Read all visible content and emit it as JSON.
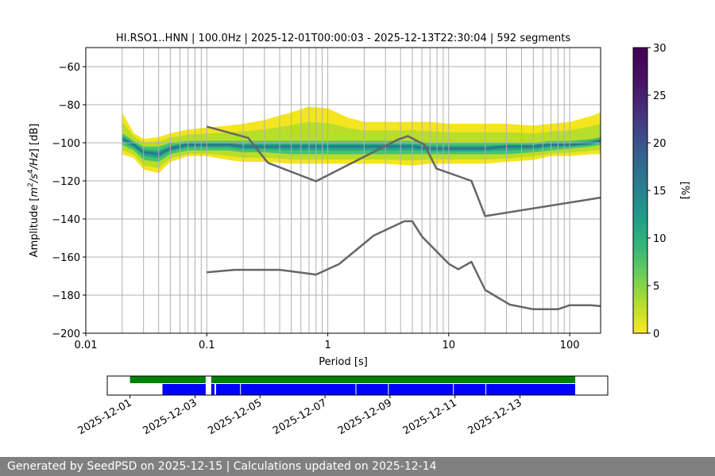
{
  "chart_data": [
    {
      "type": "heatmap",
      "title": "HI.RSO1..HNN | 100.0Hz | 2025-12-01T00:00:03 - 2025-12-13T22:30:04 | 592 segments",
      "xlabel": "Period [s]",
      "ylabel_parts": {
        "pre": "Amplitude [",
        "sym1": "m",
        "sup1": "2",
        "mid": "/",
        "sym2": "s",
        "sup2": "4",
        "slash": "/",
        "sym3": "Hz",
        "post": "] [dB]"
      },
      "x_scale": "log",
      "xlim": [
        0.01,
        180
      ],
      "ylim": [
        -200,
        -50
      ],
      "x_ticks": [
        0.01,
        0.1,
        1,
        10,
        100
      ],
      "x_tick_labels": [
        "0.01",
        "0.1",
        "1",
        "10",
        "100"
      ],
      "y_ticks": [
        -200,
        -180,
        -160,
        -140,
        -120,
        -100,
        -80,
        -60
      ],
      "y_tick_labels": [
        "−200",
        "−180",
        "−160",
        "−140",
        "−120",
        "−100",
        "−80",
        "−60"
      ],
      "period_gridlines": [
        0.02,
        0.03,
        0.04,
        0.05,
        0.06,
        0.07,
        0.08,
        0.09,
        0.1,
        0.2,
        0.3,
        0.4,
        0.5,
        0.6,
        0.7,
        0.8,
        0.9,
        1,
        2,
        3,
        4,
        5,
        6,
        7,
        8,
        9,
        10,
        20,
        30,
        40,
        50,
        60,
        70,
        80,
        90,
        100
      ],
      "amplitude_grid": true,
      "colorbar": {
        "label": "[%]",
        "range": [
          0,
          30
        ],
        "ticks": [
          0,
          5,
          10,
          15,
          20,
          25,
          30
        ],
        "colormap": "viridis_r"
      },
      "density": {
        "period": [
          0.02,
          0.025,
          0.03,
          0.04,
          0.05,
          0.07,
          0.1,
          0.15,
          0.2,
          0.3,
          0.5,
          0.7,
          1,
          1.5,
          2,
          3,
          5,
          7,
          10,
          15,
          20,
          30,
          50,
          70,
          100,
          150,
          180
        ],
        "outer_top": [
          -84,
          -95,
          -98,
          -97,
          -95,
          -93,
          -92,
          -91,
          -90,
          -88,
          -84,
          -81,
          -82,
          -87,
          -89,
          -89,
          -89,
          -89,
          -90,
          -90,
          -90,
          -90,
          -91,
          -90,
          -89,
          -86,
          -84
        ],
        "outer_bottom": [
          -106,
          -108,
          -114,
          -116,
          -110,
          -107,
          -107,
          -109,
          -110,
          -110,
          -111,
          -111,
          -111,
          -111,
          -111,
          -111,
          -112,
          -111,
          -111,
          -111,
          -111,
          -110,
          -109,
          -107,
          -107,
          -106,
          -106
        ],
        "core_top": [
          -95,
          -99,
          -102,
          -102,
          -100,
          -99,
          -99,
          -99,
          -99,
          -99,
          -99,
          -99,
          -99,
          -99,
          -99,
          -99,
          -99,
          -100,
          -100,
          -100,
          -100,
          -100,
          -100,
          -99,
          -99,
          -98,
          -97
        ],
        "core_bottom": [
          -101,
          -104,
          -109,
          -110,
          -106,
          -104,
          -104,
          -104,
          -105,
          -105,
          -106,
          -106,
          -106,
          -106,
          -106,
          -106,
          -106,
          -106,
          -106,
          -106,
          -106,
          -106,
          -105,
          -104,
          -103,
          -102,
          -101
        ],
        "mode": [
          -98,
          -101,
          -105,
          -106,
          -103,
          -101,
          -101,
          -101,
          -102,
          -102,
          -102,
          -102,
          -102,
          -102,
          -102,
          -102,
          -102,
          -103,
          -103,
          -103,
          -103,
          -102,
          -102,
          -101,
          -101,
          -100,
          -99
        ]
      },
      "series": [
        {
          "period": [
            0.1,
            0.22,
            0.32,
            0.8,
            3.8,
            4.6,
            6.3,
            7.9,
            15.4,
            20,
            180
          ],
          "values": [
            -91.5,
            -97.4,
            -110.5,
            -120.2,
            -98.3,
            -96.5,
            -101,
            -113.5,
            -120,
            -138.5,
            -128.8
          ]
        },
        {
          "period": [
            0.1,
            0.17,
            0.4,
            0.8,
            1.24,
            2.4,
            4.3,
            5.0,
            6.0,
            10,
            12,
            15.4,
            20,
            32,
            50,
            80,
            100,
            150,
            180
          ],
          "values": [
            -168,
            -166.7,
            -166.7,
            -169.2,
            -163.7,
            -148.7,
            -141.2,
            -141.2,
            -149.2,
            -163.5,
            -166.4,
            -162.5,
            -177.3,
            -185,
            -187.4,
            -187.4,
            -185.3,
            -185.3,
            -185.8
          ]
        }
      ]
    },
    {
      "type": "timeline",
      "x_tick_labels": [
        "2025-12-01",
        "2025-12-03",
        "2025-12-05",
        "2025-12-07",
        "2025-12-09",
        "2025-12-11",
        "2025-12-13"
      ],
      "x_tick_dates": [
        0,
        2,
        4,
        6,
        8,
        10,
        12
      ],
      "xlim_days": [
        -0.7,
        14.7
      ],
      "available_data": [
        [
          0,
          2.33
        ],
        [
          2.5,
          13.7
        ]
      ],
      "processed_segments": [
        [
          1,
          2.33
        ],
        [
          2.5,
          2.6
        ],
        [
          2.65,
          13.7
        ]
      ],
      "segment_breaks": [
        3.4,
        6.95,
        7.95,
        9.95,
        10.95
      ],
      "colors": {
        "available": "#008000",
        "processed": "#0000ff"
      }
    }
  ],
  "footer": {
    "text": "Generated by SeedPSD on 2025-12-15 | Calculations updated on 2025-12-14"
  }
}
